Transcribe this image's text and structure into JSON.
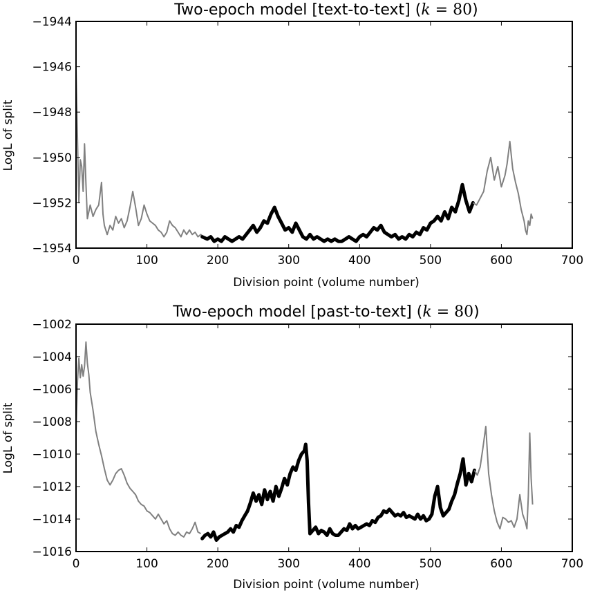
{
  "chart_data": [
    {
      "type": "line",
      "title": "Two-epoch model [text-to-text] (",
      "title_math_var": "k",
      "title_math_op": " = ",
      "title_math_val": "80",
      "title_close": ")",
      "xlabel": "Division point (volume number)",
      "ylabel": "LogL of split",
      "xlim": [
        0,
        700
      ],
      "ylim": [
        -1954,
        -1944
      ],
      "xticks": [
        0,
        100,
        200,
        300,
        400,
        500,
        600,
        700
      ],
      "yticks": [
        -1954,
        -1952,
        -1950,
        -1948,
        -1946,
        -1944
      ],
      "xtick_labels": [
        "0",
        "100",
        "200",
        "300",
        "400",
        "500",
        "600",
        "700"
      ],
      "ytick_labels": [
        "−1954",
        "−1952",
        "−1950",
        "−1948",
        "−1946",
        "−1944"
      ],
      "series": [
        {
          "style": "thin",
          "color": "#808080",
          "x": [
            0,
            2,
            4,
            6,
            8,
            10,
            12,
            14,
            16,
            18,
            20,
            24,
            28,
            32,
            36,
            38,
            40,
            44,
            48,
            52,
            56,
            60,
            64,
            68,
            72,
            76,
            80,
            84,
            88,
            92,
            96,
            100,
            104,
            108,
            112,
            116,
            120,
            124,
            128,
            132,
            136,
            140,
            144,
            148,
            152,
            156,
            160,
            164,
            168,
            172,
            176,
            180,
            184
          ],
          "y": [
            -1946.1,
            -1949.2,
            -1952.0,
            -1950.1,
            -1950.4,
            -1951.5,
            -1949.4,
            -1951.2,
            -1952.7,
            -1952.4,
            -1952.1,
            -1952.6,
            -1952.3,
            -1952.1,
            -1951.1,
            -1952.5,
            -1953.0,
            -1953.4,
            -1953.0,
            -1953.2,
            -1952.6,
            -1952.9,
            -1952.7,
            -1953.1,
            -1952.8,
            -1952.2,
            -1951.5,
            -1952.2,
            -1953.0,
            -1952.7,
            -1952.1,
            -1952.5,
            -1952.8,
            -1952.9,
            -1953.0,
            -1953.2,
            -1953.3,
            -1953.5,
            -1953.3,
            -1952.8,
            -1953.0,
            -1953.1,
            -1953.3,
            -1953.5,
            -1953.2,
            -1953.4,
            -1953.2,
            -1953.4,
            -1953.3,
            -1953.5,
            -1953.4,
            -1953.5,
            -1953.6
          ]
        },
        {
          "style": "thick",
          "color": "#000000",
          "x": [
            178,
            185,
            190,
            195,
            200,
            205,
            210,
            215,
            220,
            225,
            230,
            235,
            240,
            245,
            250,
            255,
            260,
            265,
            270,
            275,
            280,
            285,
            290,
            295,
            300,
            305,
            310,
            315,
            320,
            325,
            330,
            335,
            340,
            345,
            350,
            355,
            360,
            365,
            370,
            375,
            380,
            385,
            390,
            395,
            400,
            405,
            410,
            415,
            420,
            425,
            430,
            435,
            440,
            445,
            450,
            455,
            460,
            465,
            470,
            475,
            480,
            485,
            490,
            495,
            500,
            505,
            510,
            515,
            520,
            525,
            530,
            535,
            540,
            545,
            550,
            555,
            560
          ],
          "y": [
            -1953.5,
            -1953.6,
            -1953.5,
            -1953.7,
            -1953.6,
            -1953.7,
            -1953.5,
            -1953.6,
            -1953.7,
            -1953.6,
            -1953.5,
            -1953.6,
            -1953.4,
            -1953.2,
            -1953.0,
            -1953.3,
            -1953.1,
            -1952.8,
            -1952.9,
            -1952.5,
            -1952.2,
            -1952.6,
            -1952.9,
            -1953.2,
            -1953.1,
            -1953.3,
            -1952.9,
            -1953.2,
            -1953.5,
            -1953.6,
            -1953.4,
            -1953.6,
            -1953.5,
            -1953.6,
            -1953.7,
            -1953.6,
            -1953.7,
            -1953.6,
            -1953.7,
            -1953.7,
            -1953.6,
            -1953.5,
            -1953.6,
            -1953.7,
            -1953.5,
            -1953.4,
            -1953.5,
            -1953.3,
            -1953.1,
            -1953.2,
            -1953.0,
            -1953.3,
            -1953.4,
            -1953.5,
            -1953.4,
            -1953.6,
            -1953.5,
            -1953.6,
            -1953.4,
            -1953.5,
            -1953.3,
            -1953.4,
            -1953.1,
            -1953.2,
            -1952.9,
            -1952.8,
            -1952.6,
            -1952.8,
            -1952.4,
            -1952.7,
            -1952.2,
            -1952.4,
            -1951.9,
            -1951.2,
            -1951.9,
            -1952.4,
            -1952.0
          ]
        },
        {
          "style": "thin",
          "color": "#808080",
          "x": [
            560,
            565,
            570,
            575,
            580,
            585,
            590,
            595,
            600,
            605,
            608,
            612,
            616,
            620,
            624,
            628,
            632,
            634,
            636,
            638,
            640,
            642,
            644
          ],
          "y": [
            -1952.0,
            -1952.1,
            -1951.8,
            -1951.5,
            -1950.6,
            -1950.0,
            -1951.0,
            -1950.4,
            -1951.3,
            -1950.8,
            -1950.3,
            -1949.3,
            -1950.5,
            -1951.1,
            -1951.6,
            -1952.3,
            -1952.8,
            -1953.2,
            -1953.4,
            -1952.8,
            -1953.0,
            -1952.5,
            -1952.7
          ]
        }
      ]
    },
    {
      "type": "line",
      "title": "Two-epoch model [past-to-text] (",
      "title_math_var": "k",
      "title_math_op": " = ",
      "title_math_val": "80",
      "title_close": ")",
      "xlabel": "Division point (volume number)",
      "ylabel": "LogL of split",
      "xlim": [
        0,
        700
      ],
      "ylim": [
        -1016,
        -1002
      ],
      "xticks": [
        0,
        100,
        200,
        300,
        400,
        500,
        600,
        700
      ],
      "yticks": [
        -1016,
        -1014,
        -1012,
        -1010,
        -1008,
        -1006,
        -1004,
        -1002
      ],
      "xtick_labels": [
        "0",
        "100",
        "200",
        "300",
        "400",
        "500",
        "600",
        "700"
      ],
      "ytick_labels": [
        "−1016",
        "−1014",
        "−1012",
        "−1010",
        "−1008",
        "−1006",
        "−1004",
        "−1002"
      ],
      "series": [
        {
          "style": "thin",
          "color": "#808080",
          "x": [
            0,
            2,
            4,
            6,
            8,
            10,
            12,
            14,
            16,
            18,
            20,
            24,
            28,
            32,
            36,
            40,
            44,
            48,
            52,
            56,
            60,
            64,
            68,
            72,
            76,
            80,
            84,
            88,
            92,
            96,
            100,
            104,
            108,
            112,
            116,
            120,
            124,
            128,
            132,
            136,
            140,
            144,
            148,
            152,
            156,
            160,
            164,
            168,
            172,
            176
          ],
          "y": [
            -1008.7,
            -1005.5,
            -1004.1,
            -1005.3,
            -1004.5,
            -1005.2,
            -1004.6,
            -1003.1,
            -1004.4,
            -1005.1,
            -1006.2,
            -1007.3,
            -1008.6,
            -1009.4,
            -1010.1,
            -1010.9,
            -1011.6,
            -1011.9,
            -1011.6,
            -1011.2,
            -1011.0,
            -1010.9,
            -1011.3,
            -1011.8,
            -1012.1,
            -1012.3,
            -1012.5,
            -1012.9,
            -1013.1,
            -1013.2,
            -1013.5,
            -1013.6,
            -1013.8,
            -1014.0,
            -1013.7,
            -1014.0,
            -1014.3,
            -1014.1,
            -1014.6,
            -1014.9,
            -1015.0,
            -1014.8,
            -1015.0,
            -1015.1,
            -1014.8,
            -1014.9,
            -1014.6,
            -1014.2,
            -1014.8,
            -1014.9
          ]
        },
        {
          "style": "thick",
          "color": "#000000",
          "x": [
            178,
            182,
            186,
            190,
            194,
            198,
            202,
            206,
            210,
            214,
            218,
            222,
            226,
            230,
            234,
            238,
            242,
            246,
            250,
            254,
            258,
            262,
            266,
            270,
            274,
            278,
            282,
            286,
            290,
            294,
            298,
            302,
            306,
            310,
            314,
            318,
            322,
            324,
            326,
            328,
            330,
            334,
            338,
            342,
            346,
            350,
            354,
            358,
            362,
            366,
            370,
            374,
            378,
            382,
            386,
            390,
            394,
            398,
            402,
            406,
            410,
            414,
            418,
            422,
            426,
            430,
            434,
            438,
            442,
            446,
            450,
            454,
            458,
            462,
            466,
            470,
            474,
            478,
            482,
            486,
            490,
            494,
            498,
            502,
            506,
            510,
            514,
            518,
            522,
            526,
            530,
            534,
            538,
            542,
            546,
            550,
            554,
            558,
            562
          ],
          "y": [
            -1015.2,
            -1015.0,
            -1014.9,
            -1015.1,
            -1014.8,
            -1015.3,
            -1015.1,
            -1015.0,
            -1014.9,
            -1014.8,
            -1014.6,
            -1014.8,
            -1014.4,
            -1014.5,
            -1014.1,
            -1013.8,
            -1013.5,
            -1013.0,
            -1012.4,
            -1012.9,
            -1012.5,
            -1013.1,
            -1012.2,
            -1012.8,
            -1012.3,
            -1012.9,
            -1012.0,
            -1012.6,
            -1012.1,
            -1011.5,
            -1011.9,
            -1011.2,
            -1010.8,
            -1011.0,
            -1010.4,
            -1010.0,
            -1009.8,
            -1009.4,
            -1010.4,
            -1013.0,
            -1014.9,
            -1014.7,
            -1014.5,
            -1014.9,
            -1014.7,
            -1014.8,
            -1015.0,
            -1014.6,
            -1014.9,
            -1015.0,
            -1015.0,
            -1014.8,
            -1014.6,
            -1014.7,
            -1014.3,
            -1014.6,
            -1014.4,
            -1014.6,
            -1014.5,
            -1014.4,
            -1014.3,
            -1014.4,
            -1014.1,
            -1014.2,
            -1013.9,
            -1013.8,
            -1013.5,
            -1013.6,
            -1013.4,
            -1013.6,
            -1013.8,
            -1013.7,
            -1013.8,
            -1013.6,
            -1013.9,
            -1013.8,
            -1013.9,
            -1014.0,
            -1013.7,
            -1014.0,
            -1013.8,
            -1014.1,
            -1014.0,
            -1013.7,
            -1012.6,
            -1012.0,
            -1013.3,
            -1013.8,
            -1013.6,
            -1013.4,
            -1012.9,
            -1012.5,
            -1011.8,
            -1011.2,
            -1010.3,
            -1011.9,
            -1011.2,
            -1011.7,
            -1011.0
          ]
        },
        {
          "style": "thin",
          "color": "#808080",
          "x": [
            562,
            566,
            570,
            574,
            578,
            582,
            586,
            590,
            594,
            598,
            602,
            606,
            610,
            614,
            618,
            622,
            626,
            630,
            634,
            636,
            638,
            640,
            642,
            644
          ],
          "y": [
            -1011.0,
            -1011.3,
            -1010.8,
            -1009.6,
            -1008.3,
            -1011.2,
            -1012.5,
            -1013.5,
            -1014.2,
            -1014.6,
            -1013.9,
            -1014.0,
            -1014.2,
            -1014.1,
            -1014.5,
            -1014.0,
            -1012.5,
            -1013.7,
            -1014.2,
            -1014.6,
            -1012.6,
            -1008.7,
            -1011.5,
            -1013.1
          ]
        }
      ]
    }
  ]
}
